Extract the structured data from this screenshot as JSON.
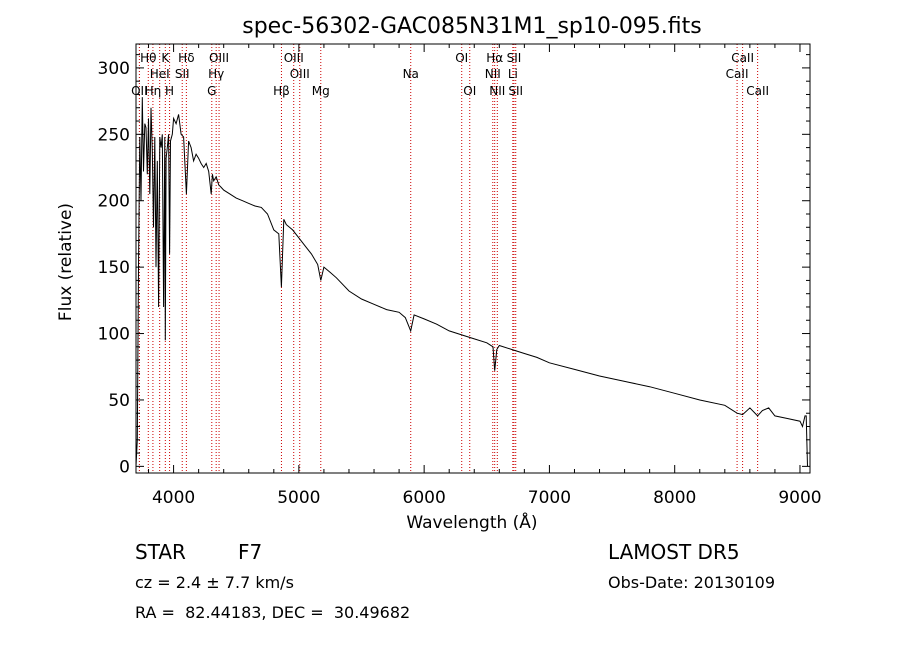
{
  "chart_data": {
    "type": "line",
    "title": "spec-56302-GAC085N31M1_sp10-095.fits",
    "xlabel": "Wavelength (Å)",
    "ylabel": "Flux (relative)",
    "xlim": [
      3700,
      9080
    ],
    "ylim": [
      -5,
      318
    ],
    "x_ticks": [
      4000,
      5000,
      6000,
      7000,
      8000,
      9000
    ],
    "x_tick_labels": [
      "4000",
      "5000",
      "6000",
      "7000",
      "8000",
      "9000"
    ],
    "y_ticks": [
      0,
      50,
      100,
      150,
      200,
      250,
      300
    ],
    "y_tick_labels": [
      "0",
      "50",
      "100",
      "150",
      "200",
      "250",
      "300"
    ],
    "grid": false,
    "series": [
      {
        "x": [
          3700,
          3710,
          3720,
          3730,
          3740,
          3750,
          3760,
          3770,
          3780,
          3790,
          3800,
          3810,
          3820,
          3830,
          3840,
          3850,
          3860,
          3870,
          3880,
          3890,
          3900,
          3910,
          3920,
          3930,
          3934,
          3940,
          3950,
          3960,
          3968,
          3975,
          3990,
          4000,
          4020,
          4040,
          4060,
          4080,
          4102,
          4120,
          4140,
          4160,
          4180,
          4200,
          4220,
          4240,
          4260,
          4280,
          4300,
          4310,
          4320,
          4340,
          4360,
          4380,
          4400,
          4450,
          4500,
          4550,
          4600,
          4650,
          4700,
          4750,
          4800,
          4840,
          4861,
          4880,
          4900,
          4950,
          5000,
          5050,
          5100,
          5150,
          5175,
          5200,
          5250,
          5300,
          5400,
          5500,
          5600,
          5700,
          5800,
          5850,
          5893,
          5920,
          6000,
          6100,
          6200,
          6300,
          6400,
          6500,
          6550,
          6563,
          6580,
          6600,
          6700,
          6800,
          6900,
          7000,
          7200,
          7400,
          7600,
          7800,
          8000,
          8200,
          8400,
          8498,
          8542,
          8600,
          8662,
          8700,
          8750,
          8800,
          8900,
          9000,
          9020,
          9040,
          9050,
          9060
        ],
        "y": [
          0,
          20,
          150,
          248,
          200,
          278,
          222,
          258,
          255,
          220,
          262,
          205,
          270,
          238,
          180,
          248,
          150,
          230,
          120,
          248,
          240,
          250,
          120,
          248,
          95,
          232,
          240,
          250,
          160,
          245,
          250,
          262,
          258,
          265,
          250,
          248,
          205,
          245,
          240,
          230,
          235,
          232,
          228,
          225,
          228,
          222,
          205,
          220,
          215,
          218,
          212,
          210,
          208,
          205,
          202,
          200,
          198,
          196,
          195,
          190,
          178,
          175,
          135,
          186,
          182,
          178,
          172,
          166,
          160,
          152,
          140,
          150,
          146,
          142,
          132,
          126,
          122,
          118,
          116,
          112,
          102,
          114,
          111,
          107,
          102,
          99,
          96,
          93,
          90,
          72,
          88,
          91,
          88,
          85,
          82,
          78,
          73,
          68,
          64,
          60,
          55,
          50,
          46,
          40,
          39,
          44,
          38,
          42,
          44,
          38,
          36,
          34,
          30,
          38,
          38,
          0
        ]
      }
    ],
    "line_labels": [
      {
        "name": "OII",
        "x": 3727,
        "row": 3
      },
      {
        "name": "Hθ",
        "x": 3798,
        "row": 1
      },
      {
        "name": "Hη",
        "x": 3835,
        "row": 3
      },
      {
        "name": "HeI",
        "x": 3889,
        "row": 2
      },
      {
        "name": "K",
        "x": 3934,
        "row": 1
      },
      {
        "name": "SII",
        "x": 4069,
        "row": 2
      },
      {
        "name": "H",
        "x": 3968,
        "row": 3
      },
      {
        "name": "Hδ",
        "x": 4102,
        "row": 1
      },
      {
        "name": "OIII",
        "x": 4363,
        "row": 1
      },
      {
        "name": "Hγ",
        "x": 4340,
        "row": 2
      },
      {
        "name": "G",
        "x": 4305,
        "row": 3
      },
      {
        "name": "Hβ",
        "x": 4861,
        "row": 3
      },
      {
        "name": "OIII",
        "x": 4959,
        "row": 1
      },
      {
        "name": "OIII",
        "x": 5007,
        "row": 2
      },
      {
        "name": "Mg",
        "x": 5175,
        "row": 3
      },
      {
        "name": "Na",
        "x": 5893,
        "row": 2
      },
      {
        "name": "OI",
        "x": 6300,
        "row": 1
      },
      {
        "name": "OI",
        "x": 6364,
        "row": 3
      },
      {
        "name": "Hα",
        "x": 6563,
        "row": 1
      },
      {
        "name": "NII",
        "x": 6548,
        "row": 2
      },
      {
        "name": "NII",
        "x": 6584,
        "row": 3
      },
      {
        "name": "SII",
        "x": 6717,
        "row": 1
      },
      {
        "name": "Li",
        "x": 6708,
        "row": 2
      },
      {
        "name": "SII",
        "x": 6731,
        "row": 3
      },
      {
        "name": "CaII",
        "x": 8542,
        "row": 1
      },
      {
        "name": "CaII",
        "x": 8498,
        "row": 2
      },
      {
        "name": "CaII",
        "x": 8662,
        "row": 3
      }
    ],
    "line_color": "#cc0000"
  },
  "info": {
    "class": "STAR",
    "subclass": "F7",
    "survey": "LAMOST DR5",
    "cz": "cz = 2.4 ± 7.7 km/s",
    "obs_date": "Obs-Date: 20130109",
    "radec": "RA =  82.44183, DEC =  30.49682"
  }
}
